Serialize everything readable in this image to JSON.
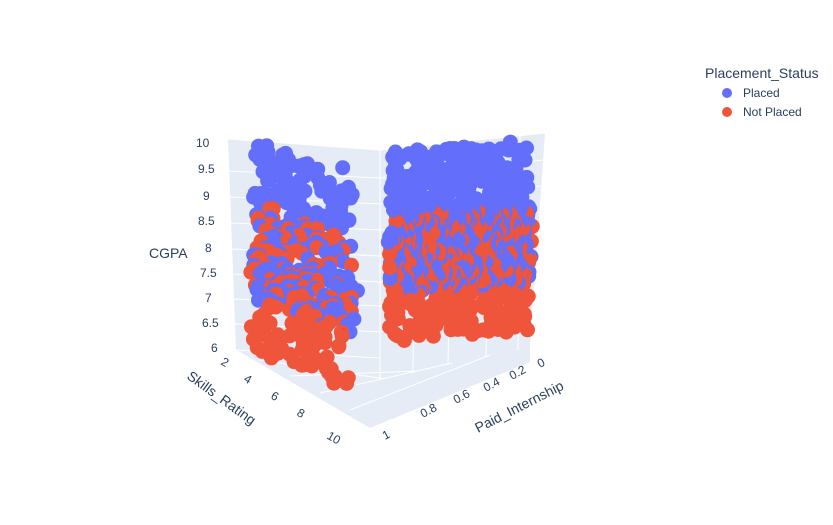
{
  "chart_data": {
    "type": "scatter3d",
    "title": "",
    "legend": {
      "title": "Placement_Status",
      "position": "top-right",
      "entries": [
        {
          "name": "Placed",
          "color": "#636efa"
        },
        {
          "name": "Not Placed",
          "color": "#ef553b"
        }
      ]
    },
    "axes": {
      "x": {
        "label": "Paid_Internship",
        "range": [
          0,
          1
        ],
        "ticks": [
          "0",
          "0.2",
          "0.4",
          "0.6",
          "0.8",
          "1"
        ]
      },
      "y": {
        "label": "Skills_Rating",
        "range": [
          1,
          10
        ],
        "ticks": [
          "2",
          "4",
          "6",
          "8",
          "10"
        ]
      },
      "z": {
        "label": "CGPA",
        "range": [
          6,
          10
        ],
        "ticks": [
          "6",
          "6.5",
          "7",
          "7.5",
          "8",
          "8.5",
          "9",
          "9.5",
          "10"
        ]
      }
    },
    "series": [
      {
        "name": "Placed",
        "color": "#636efa",
        "distribution": "Paid_Internship 0 and 1, CGPA mostly 7-10, Skills_Rating 1-10 (dense)"
      },
      {
        "name": "Not Placed",
        "color": "#ef553b",
        "distribution": "Paid_Internship 0 and 1, CGPA mostly 6-8, Skills_Rating 1-10 (dense)"
      }
    ]
  },
  "colors": {
    "scene_bg": "#e5ecf6",
    "grid": "#ffffff",
    "text": "#2a3f5f"
  }
}
